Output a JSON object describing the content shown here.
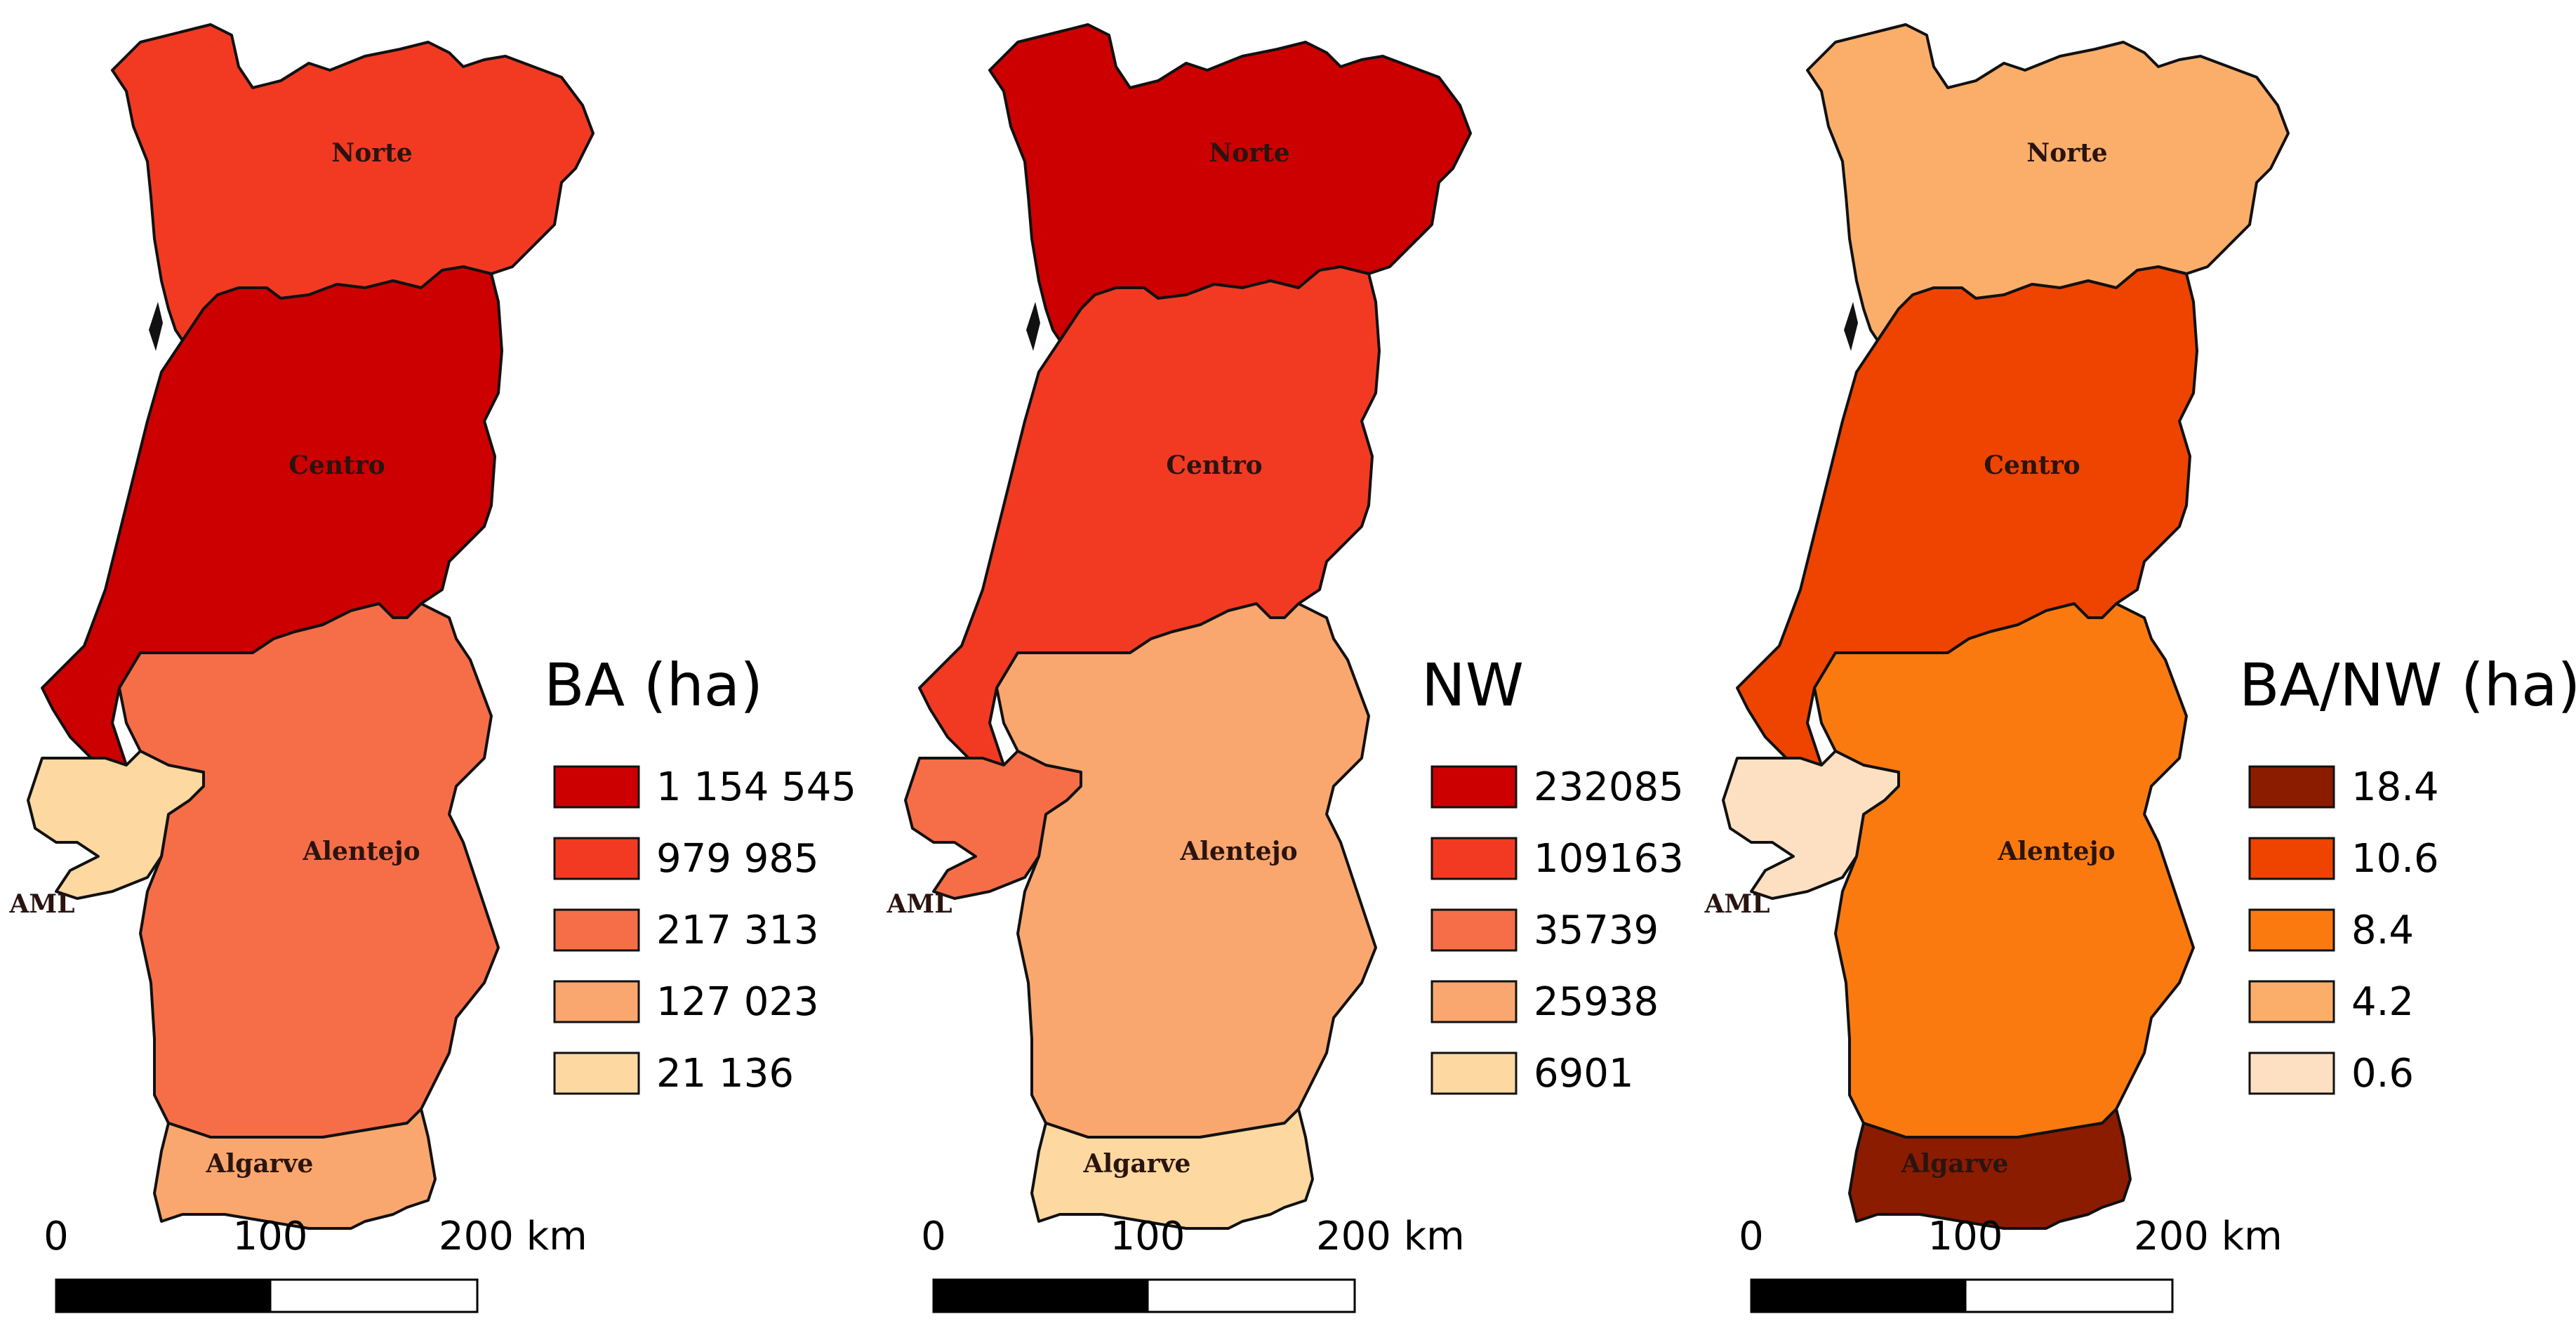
{
  "region_labels": {
    "norte": "Norte",
    "centro": "Centro",
    "alentejo": "Alentejo",
    "aml": "AML",
    "algarve": "Algarve"
  },
  "scale_bar": {
    "t0": "0",
    "t100": "100",
    "t200": "200 km"
  },
  "maps": [
    {
      "legend_title": "BA (ha)",
      "legend": [
        {
          "label": "1 154 545",
          "color": "#cc0000"
        },
        {
          "label": "979 985",
          "color": "#f23a23"
        },
        {
          "label": "217 313",
          "color": "#f66e48"
        },
        {
          "label": "127 023",
          "color": "#f9a76e"
        },
        {
          "label": "21 136",
          "color": "#fdd8a0"
        }
      ],
      "region_colors": {
        "norte": "#f23a23",
        "centro": "#cc0000",
        "alentejo": "#f66e48",
        "aml": "#fdd8a0",
        "algarve": "#f9a76e"
      }
    },
    {
      "legend_title": "NW",
      "legend": [
        {
          "label": "232085",
          "color": "#cc0000"
        },
        {
          "label": "109163",
          "color": "#f23a23"
        },
        {
          "label": "35739",
          "color": "#f66e48"
        },
        {
          "label": "25938",
          "color": "#f9a76e"
        },
        {
          "label": "6901",
          "color": "#fdd8a0"
        }
      ],
      "region_colors": {
        "norte": "#cc0000",
        "centro": "#f23a23",
        "alentejo": "#f9a76e",
        "aml": "#f66e48",
        "algarve": "#fdd8a0"
      }
    },
    {
      "legend_title": "BA/NW (ha)",
      "legend": [
        {
          "label": "18.4",
          "color": "#8c1c00"
        },
        {
          "label": "10.6",
          "color": "#ee4400"
        },
        {
          "label": "8.4",
          "color": "#fb7a10"
        },
        {
          "label": "4.2",
          "color": "#fbae6a"
        },
        {
          "label": "0.6",
          "color": "#fde0c2"
        }
      ],
      "region_colors": {
        "norte": "#fbae6a",
        "centro": "#ee4400",
        "alentejo": "#fb7a10",
        "aml": "#fde0c2",
        "algarve": "#8c1c00"
      }
    }
  ]
}
